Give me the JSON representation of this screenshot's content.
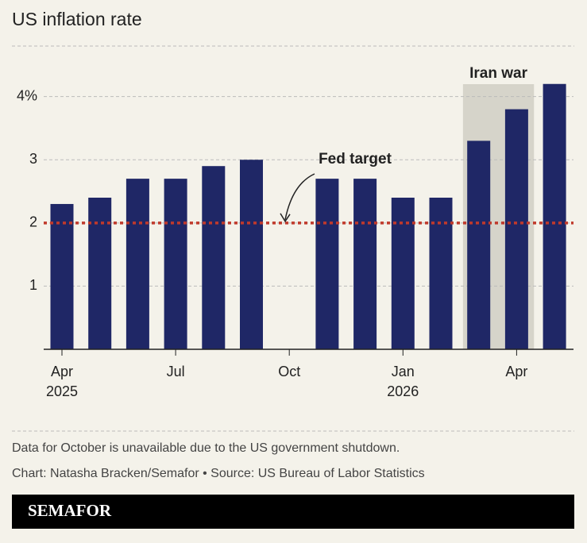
{
  "chart_data": {
    "type": "bar",
    "title": "US inflation rate",
    "categories": [
      "Apr 2025",
      null,
      null,
      "Jul",
      null,
      null,
      "Oct",
      null,
      null,
      "Jan 2026",
      null,
      null,
      "Apr",
      null
    ],
    "values": [
      2.3,
      2.4,
      2.7,
      2.7,
      2.9,
      3.0,
      null,
      2.7,
      2.7,
      2.4,
      2.4,
      3.3,
      3.8,
      4.2
    ],
    "color": "#1f2766",
    "ylim": [
      0,
      4.8
    ],
    "yticks": [
      1,
      2,
      3,
      {
        "value": 4,
        "label": "4%"
      }
    ],
    "grid": true,
    "target": 2,
    "target_label": "Fed target",
    "target_color": "#c0392b",
    "shaded_range": {
      "label": "Iran war",
      "start": 11,
      "end": 12,
      "color": "#d6d4ca"
    },
    "notes": [
      "Data for October is unavailable due to the US government shutdown.",
      "Chart: Natasha Bracken/Semafor • Source: US Bureau of Labor Statistics"
    ],
    "brand": "SEMAFOR"
  }
}
